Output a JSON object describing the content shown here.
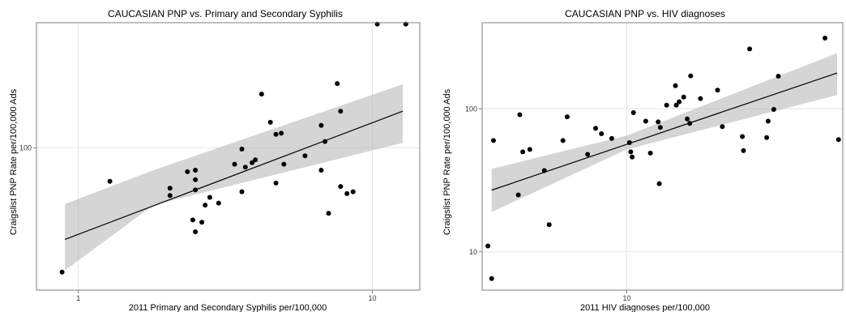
{
  "chart_data": [
    {
      "type": "scatter",
      "title": "CAUCASIAN PNP vs. Primary and Secondary Syphilis",
      "xlabel": "2011 Primary and Secondary Syphilis per/100,000",
      "ylabel": "Craigslist PNP Rate per/100,000 Ads",
      "x_scale": "log",
      "y_scale": "log",
      "xlim": [
        0.72,
        14.5
      ],
      "ylim": [
        33,
        265
      ],
      "x_ticks": [
        1,
        10
      ],
      "y_ticks": [
        100
      ],
      "grid": true,
      "fit": {
        "method": "linear (log-log)",
        "start": [
          0.9,
          49
        ],
        "end": [
          12.7,
          133
        ],
        "band_at_start": [
          38.5,
          64.5
        ],
        "band_at_x1.8": [
          64,
          84
        ],
        "band_at_end": [
          104,
          164
        ]
      },
      "points": [
        [
          0.88,
          38
        ],
        [
          1.28,
          77
        ],
        [
          2.05,
          73
        ],
        [
          2.05,
          69
        ],
        [
          2.35,
          83
        ],
        [
          2.5,
          72
        ],
        [
          2.5,
          52
        ],
        [
          2.45,
          57
        ],
        [
          2.5,
          84
        ],
        [
          2.5,
          78
        ],
        [
          2.63,
          56
        ],
        [
          2.7,
          64
        ],
        [
          2.8,
          68
        ],
        [
          3.0,
          65
        ],
        [
          3.4,
          88
        ],
        [
          3.6,
          71
        ],
        [
          3.6,
          99
        ],
        [
          3.7,
          86
        ],
        [
          3.9,
          89
        ],
        [
          4.0,
          91
        ],
        [
          4.2,
          152
        ],
        [
          4.5,
          122
        ],
        [
          4.7,
          76
        ],
        [
          4.7,
          111
        ],
        [
          4.9,
          112
        ],
        [
          5.0,
          88
        ],
        [
          5.9,
          94
        ],
        [
          6.7,
          84
        ],
        [
          6.7,
          119
        ],
        [
          6.9,
          105
        ],
        [
          7.1,
          60
        ],
        [
          7.6,
          165
        ],
        [
          7.8,
          133
        ],
        [
          7.8,
          74
        ],
        [
          8.2,
          70
        ],
        [
          8.6,
          71
        ],
        [
          13.0,
          262
        ],
        [
          10.4,
          262
        ]
      ]
    },
    {
      "type": "scatter",
      "title": "CAUCASIAN PNP vs. HIV diagnoses",
      "xlabel": "2011 HIV diagnoses per/100,000",
      "ylabel": "Craigslist PNP Rate per/100,000 Ads",
      "x_scale": "log",
      "y_scale": "log",
      "xlim": [
        3.45,
        49
      ],
      "ylim": [
        5.4,
        400
      ],
      "x_ticks": [
        10
      ],
      "y_ticks": [
        10,
        100
      ],
      "grid": true,
      "fit": {
        "method": "linear (log-log)",
        "start": [
          3.7,
          27
        ],
        "end": [
          47,
          178
        ],
        "band_at_start": [
          19,
          38
        ],
        "band_at_x10": [
          52,
          65
        ],
        "band_at_end": [
          125,
          245
        ]
      },
      "points": [
        [
          3.6,
          11
        ],
        [
          3.7,
          6.5
        ],
        [
          3.75,
          60
        ],
        [
          4.5,
          25
        ],
        [
          4.55,
          91
        ],
        [
          4.65,
          50
        ],
        [
          4.9,
          52
        ],
        [
          5.45,
          37
        ],
        [
          5.65,
          15.5
        ],
        [
          6.25,
          60
        ],
        [
          6.45,
          88
        ],
        [
          7.5,
          48
        ],
        [
          7.95,
          73
        ],
        [
          8.3,
          67
        ],
        [
          8.95,
          62
        ],
        [
          10.2,
          58
        ],
        [
          10.3,
          50
        ],
        [
          10.4,
          46
        ],
        [
          10.5,
          94
        ],
        [
          11.5,
          82
        ],
        [
          11.9,
          49
        ],
        [
          12.6,
          81
        ],
        [
          12.7,
          30
        ],
        [
          12.8,
          74
        ],
        [
          13.4,
          106
        ],
        [
          14.3,
          145
        ],
        [
          14.4,
          106
        ],
        [
          14.7,
          112
        ],
        [
          15.2,
          121
        ],
        [
          15.6,
          85
        ],
        [
          15.9,
          79
        ],
        [
          16.0,
          170
        ],
        [
          17.2,
          118
        ],
        [
          19.5,
          135
        ],
        [
          20.2,
          75
        ],
        [
          23.4,
          64
        ],
        [
          23.6,
          51
        ],
        [
          24.7,
          262
        ],
        [
          28.0,
          63
        ],
        [
          28.3,
          82
        ],
        [
          29.5,
          99
        ],
        [
          30.5,
          169
        ],
        [
          43.0,
          312
        ],
        [
          47.5,
          61
        ]
      ]
    }
  ]
}
